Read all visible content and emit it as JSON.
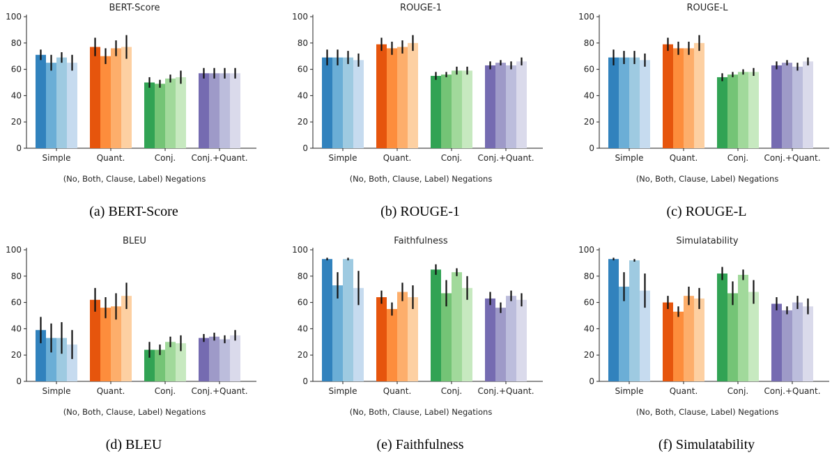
{
  "colors": {
    "blue": [
      "#3182bd",
      "#6baed6",
      "#9ecae1",
      "#c6dbef"
    ],
    "orange": [
      "#e6550d",
      "#fd8d3c",
      "#fdae6b",
      "#fdd0a2"
    ],
    "green": [
      "#31a354",
      "#74c476",
      "#a1d99b",
      "#c7e9c0"
    ],
    "purple": [
      "#756bb1",
      "#9e9ac8",
      "#bcbddc",
      "#dadaeb"
    ]
  },
  "chart_data": [
    {
      "type": "bar",
      "title": "BERT-Score",
      "caption": "(a) BERT-Score",
      "xlabel": "(No, Both, Clause, Label) Negations",
      "ylabel": "",
      "ylim": [
        0,
        100
      ],
      "yticks": [
        0,
        20,
        40,
        60,
        80,
        100
      ],
      "categories": [
        "Simple",
        "Quant.",
        "Conj.",
        "Conj.+Quant."
      ],
      "series": [
        {
          "values": [
            71,
            77,
            50,
            57
          ],
          "errors": [
            4,
            7,
            4,
            4
          ]
        },
        {
          "values": [
            65,
            70,
            49,
            57
          ],
          "errors": [
            6,
            6,
            3,
            4
          ]
        },
        {
          "values": [
            69,
            76,
            53,
            57
          ],
          "errors": [
            4,
            6,
            3,
            4
          ]
        },
        {
          "values": [
            65,
            77,
            54,
            57
          ],
          "errors": [
            6,
            9,
            5,
            4
          ]
        }
      ]
    },
    {
      "type": "bar",
      "title": "ROUGE-1",
      "caption": "(b) ROUGE-1",
      "xlabel": "(No, Both, Clause, Label) Negations",
      "ylabel": "",
      "ylim": [
        0,
        100
      ],
      "yticks": [
        0,
        20,
        40,
        60,
        80,
        100
      ],
      "categories": [
        "Simple",
        "Quant.",
        "Conj.",
        "Conj.+Quant."
      ],
      "series": [
        {
          "values": [
            69,
            79,
            55,
            63
          ],
          "errors": [
            6,
            5,
            3,
            3
          ]
        },
        {
          "values": [
            69,
            76,
            56,
            65
          ],
          "errors": [
            6,
            5,
            2,
            2
          ]
        },
        {
          "values": [
            69,
            77,
            59,
            63
          ],
          "errors": [
            5,
            5,
            3,
            3
          ]
        },
        {
          "values": [
            67,
            80,
            59,
            66
          ],
          "errors": [
            5,
            6,
            3,
            3
          ]
        }
      ]
    },
    {
      "type": "bar",
      "title": "ROUGE-L",
      "caption": "(c) ROUGE-L",
      "xlabel": "(No, Both, Clause, Label) Negations",
      "ylabel": "",
      "ylim": [
        0,
        100
      ],
      "yticks": [
        0,
        20,
        40,
        60,
        80,
        100
      ],
      "categories": [
        "Simple",
        "Quant.",
        "Conj.",
        "Conj.+Quant."
      ],
      "series": [
        {
          "values": [
            69,
            79,
            54,
            63
          ],
          "errors": [
            6,
            5,
            3,
            3
          ]
        },
        {
          "values": [
            69,
            76,
            56,
            65
          ],
          "errors": [
            5,
            5,
            2,
            2
          ]
        },
        {
          "values": [
            69,
            76,
            58,
            62
          ],
          "errors": [
            5,
            5,
            2,
            3
          ]
        },
        {
          "values": [
            67,
            80,
            58,
            66
          ],
          "errors": [
            5,
            6,
            3,
            3
          ]
        }
      ]
    },
    {
      "type": "bar",
      "title": "BLEU",
      "caption": "(d) BLEU",
      "xlabel": "(No, Both, Clause, Label) Negations",
      "ylabel": "",
      "ylim": [
        0,
        100
      ],
      "yticks": [
        0,
        20,
        40,
        60,
        80,
        100
      ],
      "categories": [
        "Simple",
        "Quant.",
        "Conj.",
        "Conj.+Quant."
      ],
      "series": [
        {
          "values": [
            39,
            62,
            24,
            33
          ],
          "errors": [
            10,
            9,
            6,
            3
          ]
        },
        {
          "values": [
            33,
            56,
            24,
            34
          ],
          "errors": [
            11,
            8,
            4,
            3
          ]
        },
        {
          "values": [
            33,
            57,
            30,
            32
          ],
          "errors": [
            12,
            10,
            4,
            3
          ]
        },
        {
          "values": [
            28,
            65,
            29,
            35
          ],
          "errors": [
            11,
            10,
            6,
            4
          ]
        }
      ]
    },
    {
      "type": "bar",
      "title": "Faithfulness",
      "caption": "(e) Faithfulness",
      "xlabel": "(No, Both, Clause, Label) Negations",
      "ylabel": "",
      "ylim": [
        0,
        100
      ],
      "yticks": [
        0,
        20,
        40,
        60,
        80,
        100
      ],
      "categories": [
        "Simple",
        "Quant.",
        "Conj.",
        "Conj.+Quant."
      ],
      "series": [
        {
          "values": [
            93,
            64,
            85,
            63
          ],
          "errors": [
            1,
            5,
            4,
            5
          ]
        },
        {
          "values": [
            73,
            55,
            67,
            56
          ],
          "errors": [
            10,
            5,
            10,
            4
          ]
        },
        {
          "values": [
            93,
            68,
            83,
            65
          ],
          "errors": [
            1,
            7,
            3,
            4
          ]
        },
        {
          "values": [
            71,
            64,
            71,
            62
          ],
          "errors": [
            13,
            9,
            9,
            5
          ]
        }
      ]
    },
    {
      "type": "bar",
      "title": "Simulatability",
      "caption": "(f) Simulatability",
      "xlabel": "(No, Both, Clause, Label) Negations",
      "ylabel": "",
      "ylim": [
        0,
        100
      ],
      "yticks": [
        0,
        20,
        40,
        60,
        80,
        100
      ],
      "categories": [
        "Simple",
        "Quant.",
        "Conj.",
        "Conj.+Quant."
      ],
      "series": [
        {
          "values": [
            93,
            60,
            82,
            59
          ],
          "errors": [
            1,
            5,
            5,
            5
          ]
        },
        {
          "values": [
            72,
            53,
            67,
            54
          ],
          "errors": [
            11,
            4,
            9,
            3
          ]
        },
        {
          "values": [
            92,
            65,
            81,
            60
          ],
          "errors": [
            1,
            7,
            4,
            5
          ]
        },
        {
          "values": [
            69,
            63,
            68,
            57
          ],
          "errors": [
            13,
            8,
            9,
            6
          ]
        }
      ]
    }
  ]
}
